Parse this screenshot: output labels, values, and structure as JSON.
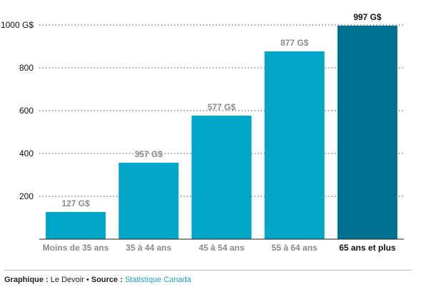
{
  "chart_data": {
    "type": "bar",
    "categories": [
      "Moins de 35 ans",
      "35 à 44 ans",
      "45 à 54 ans",
      "55 à 64 ans",
      "65 ans et plus"
    ],
    "values": [
      127,
      357,
      577,
      877,
      997
    ],
    "value_labels": [
      "127 G$",
      "357 G$",
      "577 G$",
      "877 G$",
      "997 G$"
    ],
    "highlight_index": 4,
    "yticks": [
      200,
      400,
      600,
      800,
      1000
    ],
    "ytick_labels": [
      "200",
      "400",
      "600",
      "800",
      "1000 G$"
    ],
    "ylim": [
      0,
      1000
    ],
    "grid": "dotted",
    "colors": {
      "bar": "#00a6c8",
      "highlight": "#00728f",
      "label": "#8a8a8a",
      "label_highlight": "#111111",
      "grid": "#444444"
    }
  },
  "footer": {
    "graphique_label": "Graphique :",
    "graphique_value": "Le Devoir",
    "separator": "•",
    "source_label": "Source :",
    "source_value": "Statistique Canada"
  }
}
